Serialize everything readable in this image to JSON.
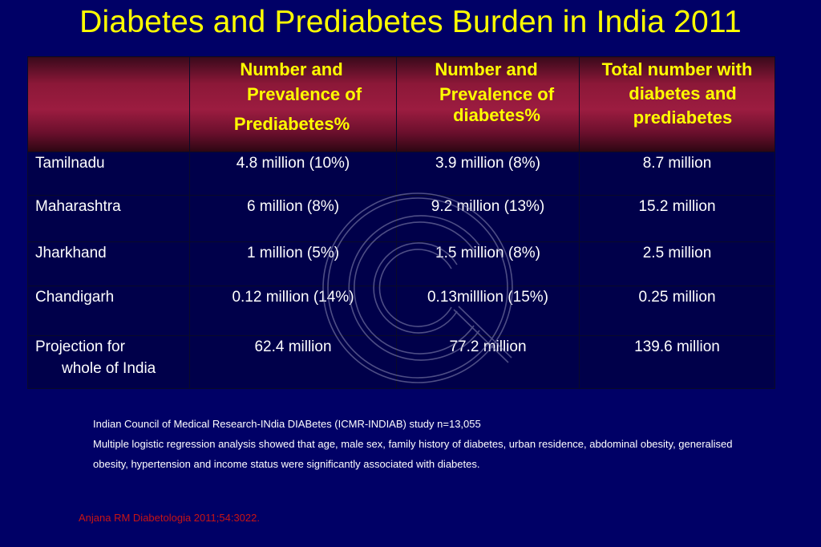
{
  "slide": {
    "title": "Diabetes and Prediabetes Burden in India 2011"
  },
  "table": {
    "headers": [
      [
        ""
      ],
      [
        "Number and",
        "Prevalence of",
        "Prediabetes%"
      ],
      [
        "Number and",
        "Prevalence of",
        "diabetes%"
      ],
      [
        "Total number with",
        "diabetes and",
        "prediabetes"
      ]
    ],
    "rows": [
      {
        "name": [
          "Tamilnadu"
        ],
        "prediabetes": "4.8 million (10%)",
        "diabetes": "3.9 million (8%)",
        "total": "8.7 million"
      },
      {
        "name": [
          "Maharashtra"
        ],
        "prediabetes": "6 million (8%)",
        "diabetes": "9.2 million (13%)",
        "total": "15.2 million"
      },
      {
        "name": [
          "Jharkhand"
        ],
        "prediabetes": "1 million (5%)",
        "diabetes": "1.5 million (8%)",
        "total": "2.5 million"
      },
      {
        "name": [
          "Chandigarh"
        ],
        "prediabetes": "0.12 million (14%)",
        "diabetes": "0.13milllion (15%)",
        "total": "0.25 million"
      },
      {
        "name": [
          "Projection for",
          "whole of India"
        ],
        "prediabetes": "62.4 million",
        "diabetes": "77.2 million",
        "total": "139.6 million"
      }
    ]
  },
  "notes": {
    "study": "Indian Council of Medical Research-INdia DIABetes (ICMR-INDIAB) study n=13,055",
    "analysis": "Multiple logistic regression analysis showed that age, male sex, family history of diabetes, urban residence, abdominal obesity, generalised obesity, hypertension and income status were significantly associated with diabetes."
  },
  "citation": "Anjana RM Diabetologia  2011;54:3022.",
  "colors": {
    "background": "#000066",
    "title": "#ffff00",
    "header": "#9c1c40",
    "citation": "#c81414"
  },
  "icons": {
    "watermark": "copyright-watermark-icon"
  }
}
